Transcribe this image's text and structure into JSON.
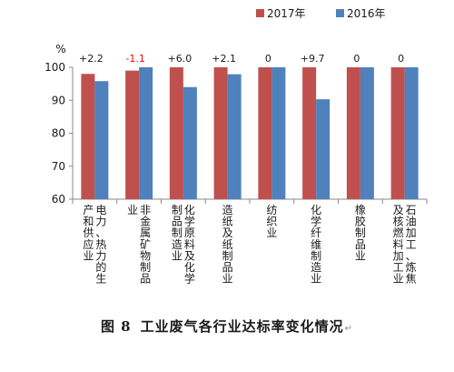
{
  "chart_data": {
    "type": "bar",
    "unit": "%",
    "ylim": [
      60,
      100
    ],
    "yticks": [
      60,
      70,
      80,
      90,
      100
    ],
    "legend_position": "top-right",
    "series": [
      {
        "name": "2017年",
        "color": "#c0504d",
        "values": [
          98.0,
          99.0,
          100.0,
          100.0,
          100.0,
          100.0,
          100.0,
          100.0
        ]
      },
      {
        "name": "2016年",
        "color": "#4f81bd",
        "values": [
          95.8,
          100.0,
          94.0,
          97.9,
          100.0,
          90.3,
          100.0,
          100.0
        ]
      }
    ],
    "change_labels": [
      "+2.2",
      "-1.1",
      "+6.0",
      "+2.1",
      "0",
      "+9.7",
      "0",
      "0"
    ],
    "change_colors": [
      "#1a1a1a",
      "#ff0000",
      "#1a1a1a",
      "#1a1a1a",
      "#1a1a1a",
      "#1a1a1a",
      "#1a1a1a",
      "#1a1a1a"
    ],
    "categories": [
      {
        "name": "电力、热力的生产和供应业",
        "lines": [
          "电力、热力的生",
          "产和供应业"
        ]
      },
      {
        "name": "非金属矿物制品业",
        "lines": [
          "非金属矿物制品",
          "业"
        ]
      },
      {
        "name": "化学原料及化学制品制造业",
        "lines": [
          "化学原料及化学",
          "制品制造业"
        ]
      },
      {
        "name": "造纸及纸制品业",
        "lines": [
          "造纸及纸制品业"
        ]
      },
      {
        "name": "纺织业",
        "lines": [
          "纺织业"
        ]
      },
      {
        "name": "化学纤维制造业",
        "lines": [
          "化学纤维制造业"
        ]
      },
      {
        "name": "橡胶制品业",
        "lines": [
          "橡胶制品业"
        ]
      },
      {
        "name": "石油加工、炼焦及核燃料加工业",
        "lines": [
          "石油加工、炼焦",
          "及核燃料加工业"
        ]
      }
    ]
  },
  "caption": {
    "number": "图 8",
    "text": "工业废气各行业达标率变化情况"
  }
}
